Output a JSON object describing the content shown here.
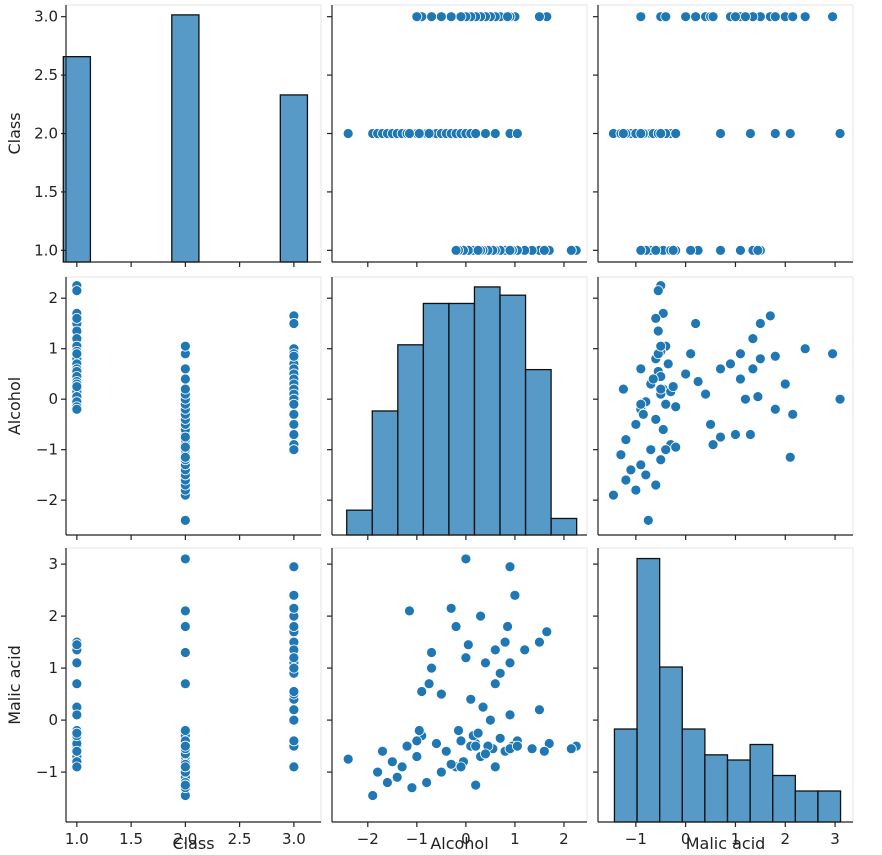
{
  "chart_data": {
    "type": "pairplot",
    "color": "#1f77b4",
    "variables": [
      "Class",
      "Alcohol",
      "Malic acid"
    ],
    "columns": [
      [
        1,
        1,
        1,
        1,
        1,
        1,
        1,
        1,
        1,
        1,
        1,
        1,
        1,
        1,
        1,
        1,
        1,
        1,
        1,
        1,
        1,
        1,
        1,
        1,
        1,
        2,
        2,
        2,
        2,
        2,
        2,
        2,
        2,
        2,
        2,
        2,
        2,
        2,
        2,
        2,
        2,
        2,
        2,
        2,
        2,
        2,
        2,
        2,
        2,
        2,
        2,
        2,
        2,
        2,
        2,
        3,
        3,
        3,
        3,
        3,
        3,
        3,
        3,
        3,
        3,
        3,
        3,
        3,
        3,
        3,
        3,
        3,
        3,
        3,
        3
      ],
      [
        2.25,
        2.15,
        1.7,
        1.5,
        1.35,
        1.2,
        1.05,
        0.95,
        0.9,
        0.8,
        0.7,
        0.6,
        0.55,
        0.45,
        0.35,
        0.3,
        0.2,
        0.15,
        0.05,
        -0.05,
        -0.15,
        -0.2,
        0.9,
        1.6,
        0.25,
        -2.4,
        -1.9,
        -1.8,
        -1.7,
        -1.6,
        -1.5,
        -1.4,
        -1.3,
        -1.2,
        -1.1,
        -1.0,
        -0.9,
        -0.8,
        -0.7,
        -0.6,
        -0.5,
        -0.4,
        -0.3,
        -0.2,
        -0.1,
        0.0,
        0.1,
        0.2,
        0.4,
        0.6,
        0.9,
        1.05,
        -1.15,
        -0.75,
        -0.95,
        1.65,
        1.5,
        1.0,
        0.9,
        0.8,
        0.7,
        0.6,
        0.5,
        0.4,
        0.3,
        0.2,
        0.1,
        0.0,
        -0.1,
        -0.3,
        -0.5,
        -0.7,
        -0.9,
        -1.0,
        0.85
      ],
      [
        -0.5,
        -0.55,
        -0.45,
        1.5,
        -0.55,
        1.35,
        -0.4,
        -0.5,
        1.1,
        -0.6,
        -0.35,
        0.7,
        -0.55,
        -0.5,
        0.25,
        -0.7,
        -0.45,
        -0.3,
        1.45,
        -0.8,
        -0.2,
        -0.9,
        0.1,
        -0.6,
        -0.25,
        -0.75,
        -1.45,
        -1.0,
        -0.6,
        -1.2,
        -0.8,
        -1.1,
        -0.9,
        -0.5,
        -1.3,
        -0.7,
        -0.3,
        -1.2,
        1.3,
        -0.45,
        -1.0,
        -0.6,
        -0.85,
        1.8,
        -0.4,
        3.1,
        -0.5,
        -1.25,
        -0.65,
        -0.9,
        -0.55,
        -0.5,
        2.1,
        0.7,
        -0.2,
        1.7,
        0.2,
        2.4,
        2.95,
        1.5,
        0.9,
        1.35,
        0.0,
        1.1,
        2.0,
        -0.5,
        0.4,
        1.2,
        -0.9,
        2.15,
        0.5,
        1.0,
        0.55,
        -0.4,
        1.8
      ]
    ],
    "axes": [
      {
        "xlim": [
          0.9,
          3.25
        ],
        "ylim": [
          0.9,
          3.1
        ],
        "ticks": [
          {
            "value": 1,
            "label": "1.0"
          },
          {
            "value": 1.5,
            "label": "1.5"
          },
          {
            "value": 2,
            "label": "2.0"
          },
          {
            "value": 2.5,
            "label": "2.5"
          },
          {
            "value": 3,
            "label": "3.0"
          }
        ]
      },
      {
        "xlim": [
          -2.73,
          2.47
        ],
        "ylim": [
          -2.69,
          2.42
        ],
        "ticks": [
          {
            "value": -2,
            "label": "−2"
          },
          {
            "value": -1,
            "label": "−1"
          },
          0,
          1,
          2
        ]
      },
      {
        "xlim": [
          -1.76,
          3.36
        ],
        "ylim": [
          -1.96,
          3.31
        ],
        "ticks": [
          {
            "value": -1,
            "label": "−1"
          },
          0,
          1,
          2,
          3
        ]
      }
    ],
    "histograms": [
      {
        "bins": [
          0.875,
          1.125,
          1.375,
          1.625,
          1.875,
          2.125,
          2.375,
          2.625,
          2.875,
          3.125
        ],
        "counts": [
          59,
          0,
          0,
          0,
          71,
          0,
          0,
          0,
          48
        ]
      },
      {
        "bins": [
          -2.43,
          -1.909,
          -1.388,
          -0.867,
          -0.346,
          0.175,
          0.696,
          1.217,
          1.738,
          2.259
        ],
        "counts": [
          3,
          15,
          23,
          28,
          28,
          30,
          29,
          20,
          2
        ]
      },
      {
        "bins": [
          -1.43,
          -0.976,
          -0.522,
          -0.068,
          0.386,
          0.84,
          1.294,
          1.748,
          2.202,
          2.656,
          3.11
        ],
        "counts": [
          18,
          51,
          30,
          18,
          13,
          12,
          15,
          9,
          6,
          6
        ]
      }
    ]
  }
}
